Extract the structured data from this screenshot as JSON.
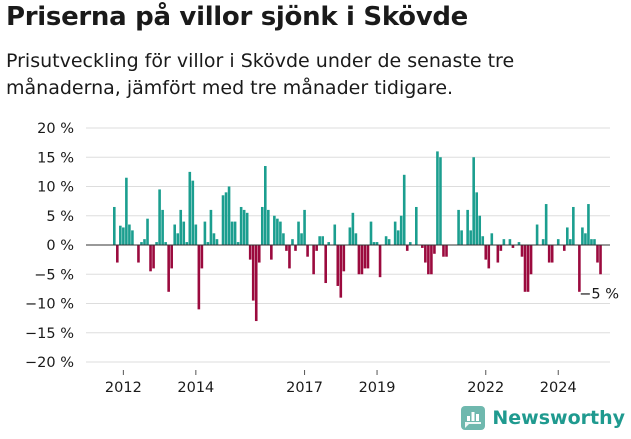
{
  "chart_data": {
    "type": "bar",
    "title": "Priserna på villor sjönk i Skövde",
    "subtitle": "Prisutveckling för villor i Skövde under de senaste tre månaderna, jämfört med tre månader tidigare.",
    "xlabel": "",
    "ylabel": "",
    "ylim": [
      -20,
      20
    ],
    "yticks": [
      20,
      15,
      10,
      5,
      0,
      -5,
      -10,
      -15,
      -20
    ],
    "ytick_labels": [
      "20 %",
      "15 %",
      "10 %",
      "5 %",
      "0 %",
      "−5 %",
      "−10 %",
      "−15 %",
      "−20 %"
    ],
    "xticks": [
      {
        "label": "2012",
        "index": 3
      },
      {
        "label": "2014",
        "index": 27
      },
      {
        "label": "2017",
        "index": 63
      },
      {
        "label": "2019",
        "index": 87
      },
      {
        "label": "2022",
        "index": 123
      },
      {
        "label": "2024",
        "index": 147
      }
    ],
    "positive_color": "#1b9e8f",
    "negative_color": "#9b0a3e",
    "values": [
      6.5,
      -3,
      3.3,
      3,
      11.5,
      3.5,
      2.5,
      0,
      -3,
      0.5,
      1,
      4.5,
      -4.5,
      -4,
      0.5,
      9.5,
      6,
      0.5,
      -8,
      -4,
      3.5,
      2,
      6,
      4,
      0.5,
      12.5,
      11,
      3.5,
      -11,
      -4,
      4,
      0.5,
      6,
      2,
      1,
      0,
      8.5,
      9,
      10,
      4,
      4,
      0.5,
      6.5,
      6,
      5.5,
      -2.5,
      -9.5,
      -13,
      -3,
      6.5,
      13.5,
      6,
      -2.5,
      5,
      4.5,
      4,
      2,
      -1,
      -4,
      1,
      -1,
      4,
      2,
      6,
      -2,
      0,
      -5,
      -1,
      1.5,
      1.5,
      -6.5,
      0.5,
      0,
      3.5,
      -7,
      -9,
      -4.5,
      0,
      3,
      5.5,
      2,
      -5,
      -5,
      -4,
      -4,
      4,
      0.5,
      0.5,
      -5.5,
      0,
      1.5,
      1,
      0,
      4,
      2.5,
      5,
      12,
      -1,
      0.5,
      0,
      6.5,
      0,
      -0.5,
      -3,
      -5,
      -5,
      -1.5,
      16,
      15,
      -2,
      -2,
      0,
      0,
      0,
      6,
      2.5,
      0,
      6,
      2.5,
      15,
      9,
      5,
      1.5,
      -2.5,
      -4,
      2,
      0,
      -3,
      -1,
      1,
      0,
      1,
      -0.5,
      0,
      0.5,
      -2,
      -8,
      -8,
      -5,
      0,
      3.5,
      0,
      1,
      7,
      -3,
      -3,
      0,
      1,
      0,
      -1,
      3,
      1,
      6.5,
      0,
      -8,
      3,
      2,
      7,
      1,
      1,
      -3,
      -5
    ],
    "end_label": "−5 %"
  },
  "brand": {
    "name": "Newsworthy",
    "color": "#1f9a8f"
  },
  "icons": {
    "logo": "newsworthy-logo-icon"
  }
}
